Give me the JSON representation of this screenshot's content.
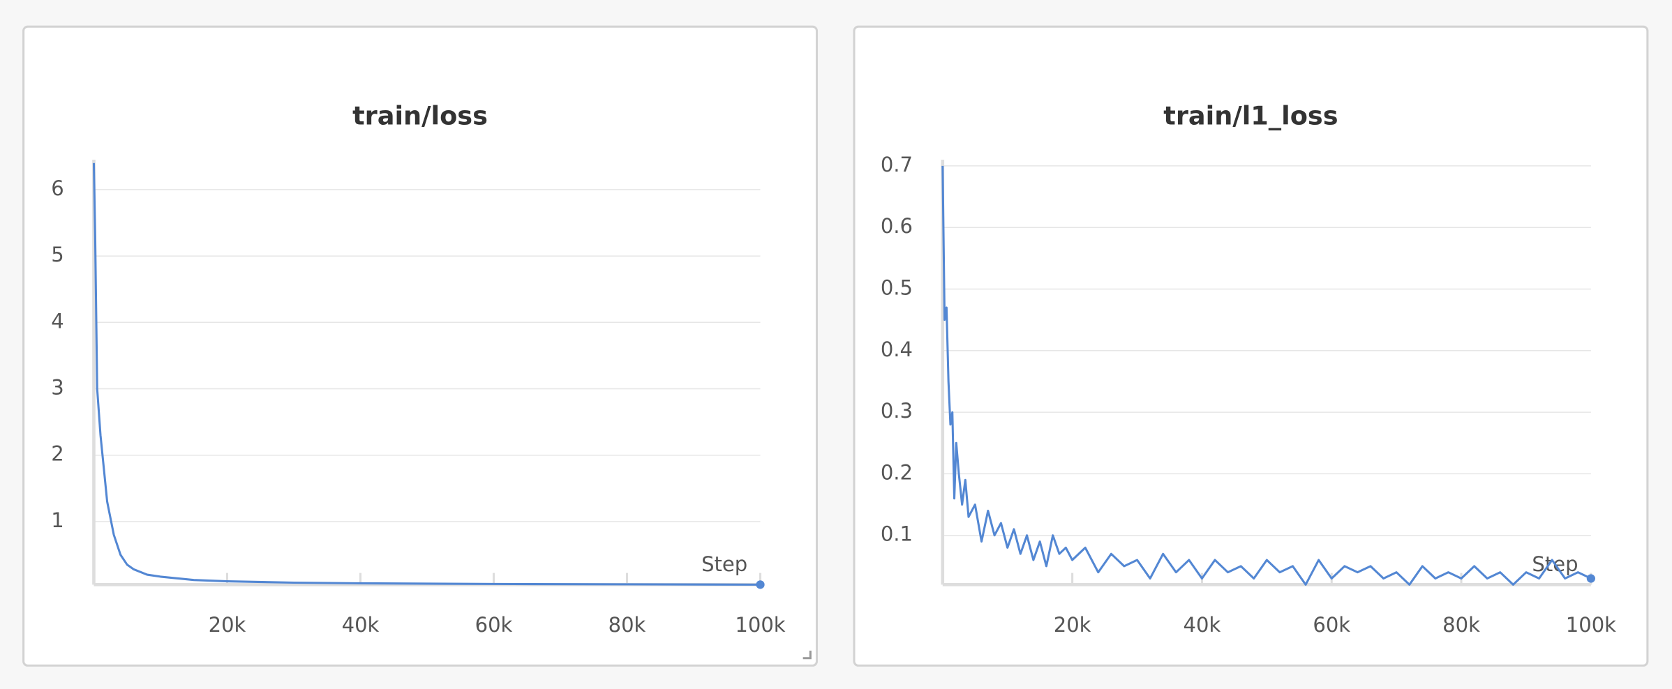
{
  "chart_data": [
    {
      "type": "line",
      "title": "train/loss",
      "x_label": "Step",
      "x": [
        0,
        200,
        500,
        1000,
        1500,
        2000,
        3000,
        4000,
        5000,
        6000,
        8000,
        10000,
        15000,
        20000,
        30000,
        40000,
        60000,
        80000,
        100000
      ],
      "values": [
        6.4,
        5.3,
        3.0,
        2.3,
        1.8,
        1.3,
        0.8,
        0.5,
        0.35,
        0.28,
        0.2,
        0.17,
        0.12,
        0.1,
        0.08,
        0.07,
        0.06,
        0.055,
        0.05
      ],
      "color": "#5387d3",
      "xlim": [
        0,
        100000
      ],
      "xticks": [
        {
          "value": 20000,
          "label": "20k"
        },
        {
          "value": 40000,
          "label": "40k"
        },
        {
          "value": 60000,
          "label": "60k"
        },
        {
          "value": 80000,
          "label": "80k"
        },
        {
          "value": 100000,
          "label": "100k"
        }
      ],
      "ylim": [
        0.05,
        6.45
      ],
      "yticks": [
        1,
        2,
        3,
        4,
        5,
        6
      ],
      "grid": true
    },
    {
      "type": "line",
      "title": "train/l1_loss",
      "x_label": "Step",
      "x": [
        0,
        300,
        600,
        900,
        1200,
        1500,
        1800,
        2100,
        2500,
        3000,
        3500,
        4000,
        5000,
        6000,
        7000,
        8000,
        9000,
        10000,
        11000,
        12000,
        13000,
        14000,
        15000,
        16000,
        17000,
        18000,
        19000,
        20000,
        22000,
        24000,
        26000,
        28000,
        30000,
        32000,
        34000,
        36000,
        38000,
        40000,
        42000,
        44000,
        46000,
        48000,
        50000,
        52000,
        54000,
        56000,
        58000,
        60000,
        62000,
        64000,
        66000,
        68000,
        70000,
        72000,
        74000,
        76000,
        78000,
        80000,
        82000,
        84000,
        86000,
        88000,
        90000,
        92000,
        94000,
        96000,
        98000,
        100000
      ],
      "values": [
        0.7,
        0.45,
        0.47,
        0.35,
        0.28,
        0.3,
        0.16,
        0.25,
        0.2,
        0.15,
        0.19,
        0.13,
        0.15,
        0.09,
        0.14,
        0.1,
        0.12,
        0.08,
        0.11,
        0.07,
        0.1,
        0.06,
        0.09,
        0.05,
        0.1,
        0.07,
        0.08,
        0.06,
        0.08,
        0.04,
        0.07,
        0.05,
        0.06,
        0.03,
        0.07,
        0.04,
        0.06,
        0.03,
        0.06,
        0.04,
        0.05,
        0.03,
        0.06,
        0.04,
        0.05,
        0.02,
        0.06,
        0.03,
        0.05,
        0.04,
        0.05,
        0.03,
        0.04,
        0.02,
        0.05,
        0.03,
        0.04,
        0.03,
        0.05,
        0.03,
        0.04,
        0.02,
        0.04,
        0.03,
        0.06,
        0.03,
        0.04,
        0.03
      ],
      "color": "#5387d3",
      "xlim": [
        0,
        100000
      ],
      "xticks": [
        {
          "value": 20000,
          "label": "20k"
        },
        {
          "value": 40000,
          "label": "40k"
        },
        {
          "value": 60000,
          "label": "60k"
        },
        {
          "value": 80000,
          "label": "80k"
        },
        {
          "value": 100000,
          "label": "100k"
        }
      ],
      "ylim": [
        0.02,
        0.71
      ],
      "yticks": [
        0.1,
        0.2,
        0.3,
        0.4,
        0.5,
        0.6,
        0.7
      ],
      "grid": true
    }
  ]
}
